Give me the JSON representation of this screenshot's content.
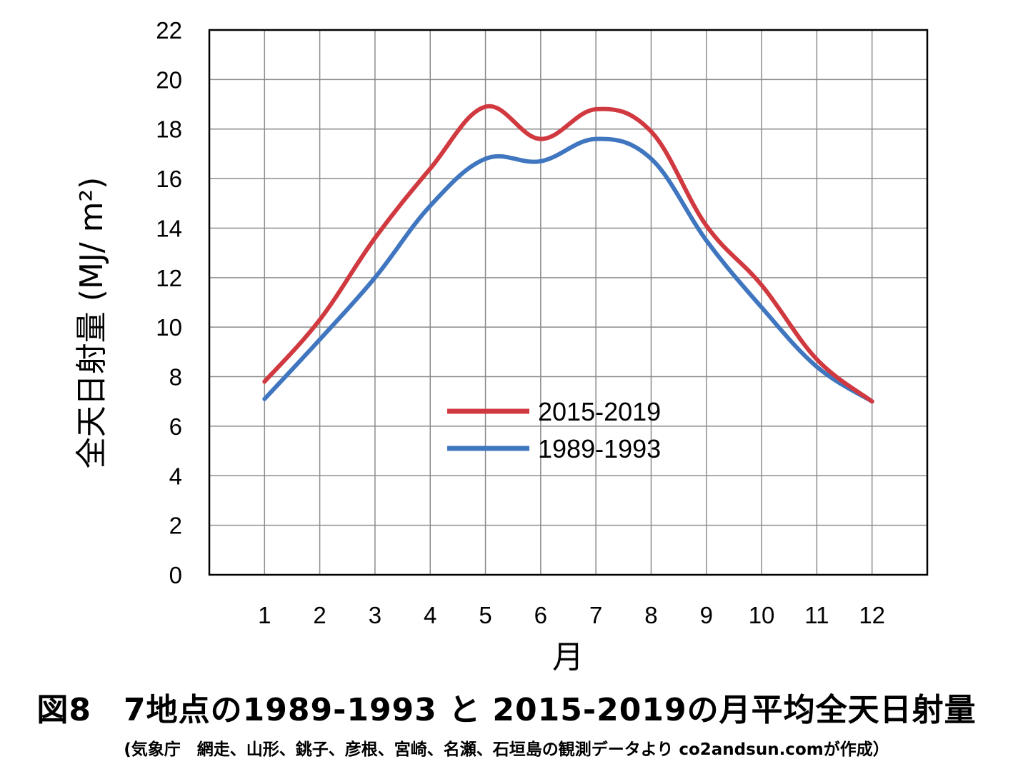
{
  "chart_data": {
    "type": "line",
    "categories": [
      "1",
      "2",
      "3",
      "4",
      "5",
      "6",
      "7",
      "8",
      "9",
      "10",
      "11",
      "12"
    ],
    "x": [
      1,
      2,
      3,
      4,
      5,
      6,
      7,
      8,
      9,
      10,
      11,
      12
    ],
    "series": [
      {
        "name": "2015-2019",
        "color": "#d0393f",
        "values": [
          7.8,
          10.3,
          13.6,
          16.4,
          18.9,
          17.6,
          18.8,
          17.9,
          14.1,
          11.7,
          8.7,
          7.0
        ]
      },
      {
        "name": "1989-1993",
        "color": "#3f76bf",
        "values": [
          7.1,
          9.5,
          12.0,
          14.9,
          16.8,
          16.7,
          17.6,
          16.8,
          13.5,
          10.8,
          8.4,
          7.0
        ]
      }
    ],
    "ylim": [
      0,
      22
    ],
    "yticks": [
      0,
      2,
      4,
      6,
      8,
      10,
      12,
      14,
      16,
      18,
      20,
      22
    ],
    "xlabel": "月",
    "ylabel": "全天日射量 (MJ/ m²)",
    "grid": true,
    "legend_position": "center"
  },
  "caption": "図8　7地点の1989-1993 と 2015-2019の月平均全天日射量",
  "source_note": "(気象庁　網走、山形、銚子、彦根、宮崎、名瀬、石垣島の観測データより co2andsun.comが作成）"
}
